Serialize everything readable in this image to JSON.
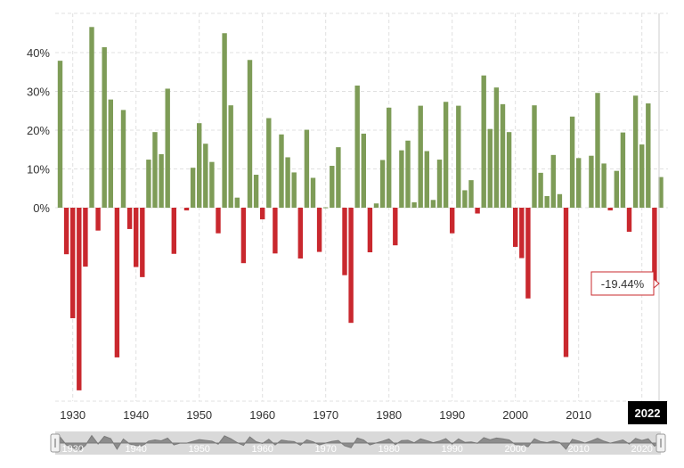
{
  "chart_data": {
    "type": "bar",
    "x": [
      1928,
      1929,
      1930,
      1931,
      1932,
      1933,
      1934,
      1935,
      1936,
      1937,
      1938,
      1939,
      1940,
      1941,
      1942,
      1943,
      1944,
      1945,
      1946,
      1947,
      1948,
      1949,
      1950,
      1951,
      1952,
      1953,
      1954,
      1955,
      1956,
      1957,
      1958,
      1959,
      1960,
      1961,
      1962,
      1963,
      1964,
      1965,
      1966,
      1967,
      1968,
      1969,
      1970,
      1971,
      1972,
      1973,
      1974,
      1975,
      1976,
      1977,
      1978,
      1979,
      1980,
      1981,
      1982,
      1983,
      1984,
      1985,
      1986,
      1987,
      1988,
      1989,
      1990,
      1991,
      1992,
      1993,
      1994,
      1995,
      1996,
      1997,
      1998,
      1999,
      2000,
      2001,
      2002,
      2003,
      2004,
      2005,
      2006,
      2007,
      2008,
      2009,
      2010,
      2011,
      2012,
      2013,
      2014,
      2015,
      2016,
      2017,
      2018,
      2019,
      2020,
      2021,
      2022,
      2023
    ],
    "values": [
      37.9,
      -12.0,
      -28.5,
      -47.1,
      -15.2,
      46.6,
      -5.9,
      41.4,
      27.9,
      -38.6,
      25.2,
      -5.5,
      -15.3,
      -17.9,
      12.4,
      19.5,
      13.8,
      30.7,
      -11.9,
      0.0,
      -0.7,
      10.3,
      21.8,
      16.5,
      11.8,
      -6.6,
      45.0,
      26.4,
      2.6,
      -14.3,
      38.1,
      8.5,
      -3.0,
      23.1,
      -11.8,
      18.9,
      13.0,
      9.1,
      -13.1,
      20.1,
      7.7,
      -11.4,
      0.1,
      10.8,
      15.6,
      -17.4,
      -29.7,
      31.5,
      19.1,
      -11.5,
      1.1,
      12.3,
      25.8,
      -9.7,
      14.8,
      17.3,
      1.4,
      26.3,
      14.6,
      2.0,
      12.4,
      27.3,
      -6.6,
      26.3,
      4.5,
      7.1,
      -1.5,
      34.1,
      20.3,
      31.0,
      26.7,
      19.5,
      -10.1,
      -13.0,
      -23.4,
      26.4,
      9.0,
      3.0,
      13.6,
      3.5,
      -38.5,
      23.5,
      12.8,
      0.0,
      13.4,
      29.6,
      11.4,
      -0.7,
      9.5,
      19.4,
      -6.2,
      28.9,
      16.3,
      26.9,
      -19.44,
      7.9
    ],
    "ytick_labels": [
      "40%",
      "30%",
      "20%",
      "10%",
      "0%"
    ],
    "xtick_labels": [
      "1930",
      "1940",
      "1950",
      "1960",
      "1970",
      "1980",
      "1990",
      "2000",
      "2010"
    ],
    "ylim": [
      -48,
      50
    ],
    "y_unit": "%",
    "grid": true,
    "colors": {
      "positive": "#7e9c57",
      "negative": "#c9282e"
    },
    "tooltip": {
      "text": "-19.44%",
      "year": "2022"
    },
    "navigator": {
      "tick_labels": [
        "1930",
        "1940",
        "1950",
        "1960",
        "1970",
        "1980",
        "1990",
        "2000",
        "2010",
        "2020"
      ],
      "handle_icons": [
        "handle-left-icon",
        "handle-right-icon"
      ]
    }
  }
}
